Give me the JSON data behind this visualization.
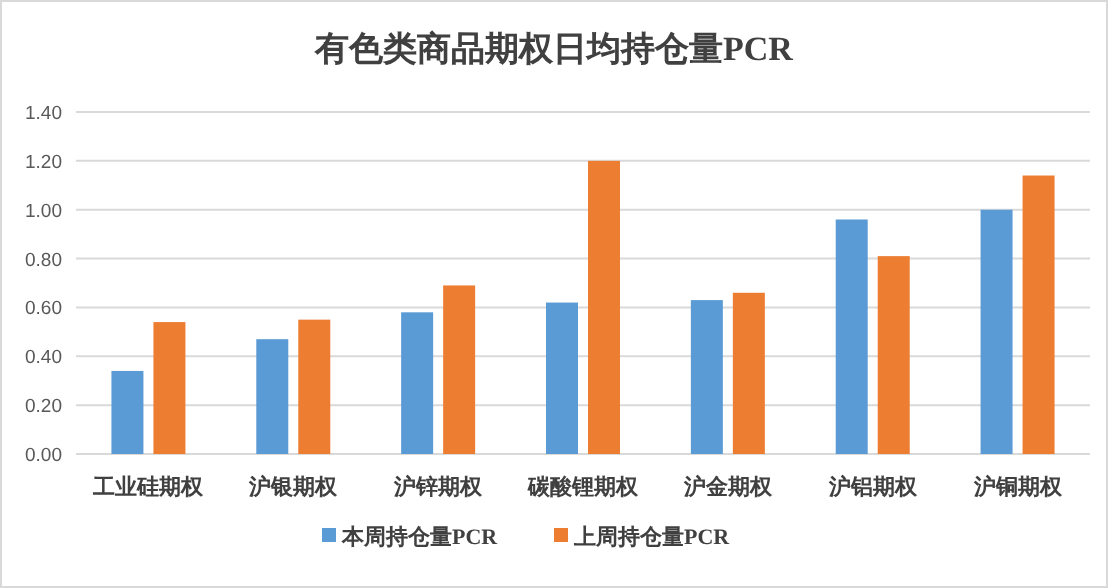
{
  "chart_data": {
    "type": "bar",
    "title": "有色类商品期权日均持仓量PCR",
    "categories": [
      "工业硅期权",
      "沪银期权",
      "沪锌期权",
      "碳酸锂期权",
      "沪金期权",
      "沪铝期权",
      "沪铜期权"
    ],
    "series": [
      {
        "name": "本周持仓量PCR",
        "color": "#5b9bd5",
        "values": [
          0.34,
          0.47,
          0.58,
          0.62,
          0.63,
          0.96,
          1.0
        ]
      },
      {
        "name": "上周持仓量PCR",
        "color": "#ed7d31",
        "values": [
          0.54,
          0.55,
          0.69,
          1.2,
          0.66,
          0.81,
          1.14
        ]
      }
    ],
    "ylim": [
      0,
      1.4
    ],
    "yticks": [
      {
        "value": 0,
        "label": "0.00"
      },
      {
        "value": 0.2,
        "label": "0.20"
      },
      {
        "value": 0.4,
        "label": "0.40"
      },
      {
        "value": 0.6,
        "label": "0.60"
      },
      {
        "value": 0.8,
        "label": "0.80"
      },
      {
        "value": 1.0,
        "label": "1.00"
      },
      {
        "value": 1.2,
        "label": "1.20"
      },
      {
        "value": 1.4,
        "label": "1.40"
      }
    ],
    "grid": "y",
    "legend": "bottom"
  }
}
